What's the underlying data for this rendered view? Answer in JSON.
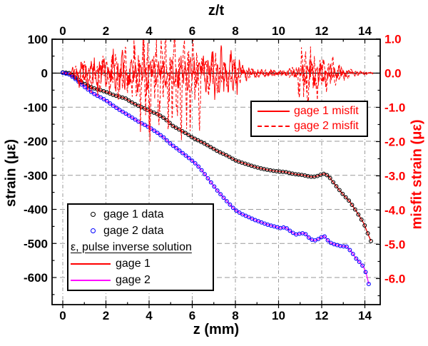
{
  "chart_data": {
    "type": "line+scatter",
    "title": "",
    "x_axis": {
      "label_bottom": "z (mm)",
      "label_top": "z/t",
      "range": [
        -0.5,
        14.7
      ],
      "major_ticks": [
        0,
        2,
        4,
        6,
        8,
        10,
        12,
        14
      ],
      "minor_ticks": [
        1,
        3,
        5,
        7,
        9,
        11,
        13
      ]
    },
    "y_axis_left": {
      "label": "strain (με)",
      "range": [
        -680,
        100
      ],
      "major_ticks": [
        100,
        0,
        -100,
        -200,
        -300,
        -400,
        -500,
        -600
      ],
      "color": "#000000"
    },
    "y_axis_right": {
      "label": "misfit strain (με)",
      "range": [
        -6.8,
        1.0
      ],
      "major_ticks": [
        "1.0",
        "0.0",
        "-1.0",
        "-2.0",
        "-3.0",
        "-4.0",
        "-5.0",
        "-6.0"
      ],
      "color": "#ff0000"
    },
    "grid": {
      "vertical_style": "dash-dot gray at even z",
      "horizontal_style": "dashed gray at -100 to -600",
      "color": "#999999"
    },
    "marker_spacing_z": 0.145,
    "series": [
      {
        "name": "gage 1 data",
        "type": "scatter",
        "marker": "open-circle",
        "color": "#000000",
        "axis": "left",
        "points": [
          [
            0,
            2
          ],
          [
            0.3,
            0
          ],
          [
            0.6,
            -14
          ],
          [
            0.9,
            -28
          ],
          [
            1.2,
            -38
          ],
          [
            1.5,
            -46
          ],
          [
            1.8,
            -51
          ],
          [
            2.0,
            -55
          ],
          [
            2.3,
            -63
          ],
          [
            2.6,
            -69
          ],
          [
            2.9,
            -74
          ],
          [
            3.2,
            -86
          ],
          [
            3.5,
            -96
          ],
          [
            3.8,
            -104
          ],
          [
            4.1,
            -113
          ],
          [
            4.35,
            -119
          ],
          [
            4.6,
            -128
          ],
          [
            4.9,
            -143
          ],
          [
            5.1,
            -155
          ],
          [
            5.4,
            -166
          ],
          [
            5.7,
            -176
          ],
          [
            6.0,
            -189
          ],
          [
            6.3,
            -198
          ],
          [
            6.6,
            -208
          ],
          [
            6.9,
            -219
          ],
          [
            7.2,
            -230
          ],
          [
            7.45,
            -237
          ],
          [
            7.7,
            -245
          ],
          [
            8.0,
            -256
          ],
          [
            8.3,
            -263
          ],
          [
            8.6,
            -269
          ],
          [
            8.9,
            -275
          ],
          [
            9.2,
            -280
          ],
          [
            9.5,
            -284
          ],
          [
            9.8,
            -287
          ],
          [
            10.05,
            -289
          ],
          [
            10.3,
            -290
          ],
          [
            10.5,
            -293
          ],
          [
            10.8,
            -297
          ],
          [
            11.1,
            -299
          ],
          [
            11.4,
            -303
          ],
          [
            11.6,
            -305
          ],
          [
            11.8,
            -302
          ],
          [
            12.0,
            -297
          ],
          [
            12.15,
            -295
          ],
          [
            12.35,
            -305
          ],
          [
            12.65,
            -330
          ],
          [
            13.0,
            -357
          ],
          [
            13.3,
            -377
          ],
          [
            13.6,
            -405
          ],
          [
            13.95,
            -441
          ],
          [
            14.1,
            -465
          ],
          [
            14.28,
            -493
          ]
        ]
      },
      {
        "name": "gage 2 data",
        "type": "scatter",
        "marker": "open-circle",
        "color": "#0000ff",
        "axis": "left",
        "points": [
          [
            0,
            1
          ],
          [
            0.3,
            -4
          ],
          [
            0.6,
            -18
          ],
          [
            0.9,
            -35
          ],
          [
            1.2,
            -50
          ],
          [
            1.5,
            -63
          ],
          [
            1.8,
            -73
          ],
          [
            2.0,
            -80
          ],
          [
            2.3,
            -94
          ],
          [
            2.6,
            -107
          ],
          [
            2.9,
            -118
          ],
          [
            3.2,
            -130
          ],
          [
            3.5,
            -142
          ],
          [
            3.8,
            -152
          ],
          [
            4.1,
            -163
          ],
          [
            4.4,
            -176
          ],
          [
            4.7,
            -190
          ],
          [
            5.0,
            -208
          ],
          [
            5.3,
            -222
          ],
          [
            5.6,
            -237
          ],
          [
            5.9,
            -252
          ],
          [
            6.2,
            -268
          ],
          [
            6.5,
            -290
          ],
          [
            6.8,
            -315
          ],
          [
            7.1,
            -340
          ],
          [
            7.4,
            -362
          ],
          [
            7.7,
            -383
          ],
          [
            8.0,
            -402
          ],
          [
            8.3,
            -414
          ],
          [
            8.6,
            -422
          ],
          [
            8.9,
            -431
          ],
          [
            9.2,
            -438
          ],
          [
            9.5,
            -445
          ],
          [
            9.8,
            -450
          ],
          [
            10.1,
            -455
          ],
          [
            10.3,
            -452
          ],
          [
            10.6,
            -466
          ],
          [
            10.8,
            -474
          ],
          [
            11.0,
            -471
          ],
          [
            11.2,
            -469
          ],
          [
            11.45,
            -486
          ],
          [
            11.65,
            -492
          ],
          [
            11.85,
            -487
          ],
          [
            12.1,
            -477
          ],
          [
            12.35,
            -496
          ],
          [
            12.6,
            -503
          ],
          [
            12.9,
            -508
          ],
          [
            13.15,
            -509
          ],
          [
            13.4,
            -526
          ],
          [
            13.6,
            -545
          ],
          [
            13.8,
            -558
          ],
          [
            13.95,
            -570
          ],
          [
            14.07,
            -590
          ],
          [
            14.18,
            -619
          ]
        ]
      },
      {
        "name": "gage 1",
        "role": "ε, pulse inverse solution",
        "type": "line",
        "style": "solid",
        "color": "#e80000",
        "axis": "left",
        "follows": "gage 1 data"
      },
      {
        "name": "gage 2",
        "role": "ε, pulse inverse solution",
        "type": "line",
        "style": "solid",
        "color": "#ff00ff",
        "axis": "left",
        "follows": "gage 2 data"
      },
      {
        "name": "gage 1 misfit",
        "type": "noise-line",
        "style": "solid",
        "color": "#ff0000",
        "axis": "right",
        "amplitude_envelope": [
          [
            0.3,
            0.02
          ],
          [
            0.5,
            0.16
          ],
          [
            0.8,
            0.34
          ],
          [
            1.2,
            0.46
          ],
          [
            2.0,
            0.5
          ],
          [
            3.0,
            0.48
          ],
          [
            3.6,
            0.5
          ],
          [
            4.2,
            0.45
          ],
          [
            5.0,
            0.42
          ],
          [
            5.6,
            0.38
          ],
          [
            6.2,
            0.36
          ],
          [
            6.8,
            0.55
          ],
          [
            7.2,
            0.65
          ],
          [
            7.7,
            0.6
          ],
          [
            8.1,
            0.45
          ],
          [
            8.4,
            0.2
          ],
          [
            8.7,
            0.12
          ],
          [
            9.5,
            0.08
          ],
          [
            10.3,
            0.07
          ],
          [
            10.8,
            0.12
          ],
          [
            11.2,
            0.28
          ],
          [
            11.5,
            0.33
          ],
          [
            12.0,
            0.28
          ],
          [
            12.5,
            0.22
          ],
          [
            13.0,
            0.14
          ],
          [
            13.3,
            0.07
          ],
          [
            13.8,
            0.04
          ],
          [
            14.3,
            0.02
          ]
        ]
      },
      {
        "name": "gage 2 misfit",
        "type": "noise-line",
        "style": "dashed",
        "color": "#ff0000",
        "axis": "right",
        "amplitude_envelope": [
          [
            0.3,
            0.02
          ],
          [
            0.5,
            0.12
          ],
          [
            0.8,
            0.28
          ],
          [
            1.2,
            0.4
          ],
          [
            2.0,
            0.5
          ],
          [
            2.6,
            0.6
          ],
          [
            3.2,
            0.75
          ],
          [
            3.7,
            0.95
          ],
          [
            4.2,
            1.0
          ],
          [
            4.7,
            1.05
          ],
          [
            5.2,
            1.0
          ],
          [
            5.6,
            1.15
          ],
          [
            6.1,
            0.85
          ],
          [
            6.6,
            0.65
          ],
          [
            7.0,
            0.5
          ],
          [
            7.5,
            0.42
          ],
          [
            8.1,
            0.3
          ],
          [
            8.4,
            0.15
          ],
          [
            8.7,
            0.1
          ],
          [
            9.5,
            0.09
          ],
          [
            10.3,
            0.08
          ],
          [
            10.8,
            0.2
          ],
          [
            11.1,
            0.6
          ],
          [
            11.4,
            0.75
          ],
          [
            11.7,
            0.55
          ],
          [
            12.0,
            0.45
          ],
          [
            12.5,
            0.33
          ],
          [
            13.0,
            0.25
          ],
          [
            13.3,
            0.1
          ],
          [
            13.8,
            0.05
          ],
          [
            14.3,
            0.02
          ]
        ]
      }
    ],
    "legends": {
      "misfit_box": {
        "position": "upper right inside plot",
        "items": [
          {
            "label": "gage 1 misfit",
            "swatch": "red-solid-line"
          },
          {
            "label": "gage 2 misfit",
            "swatch": "red-dashed-line"
          }
        ]
      },
      "main_box": {
        "position": "lower left inside plot",
        "items": [
          {
            "label": "gage 1 data",
            "swatch": "black-open-circle"
          },
          {
            "label": "gage 2 data",
            "swatch": "blue-open-circle"
          }
        ],
        "subheader": "ε, pulse inverse solution",
        "line_items": [
          {
            "label": "gage 1",
            "swatch": "red-line"
          },
          {
            "label": "gage 2",
            "swatch": "magenta-line"
          }
        ]
      }
    }
  }
}
